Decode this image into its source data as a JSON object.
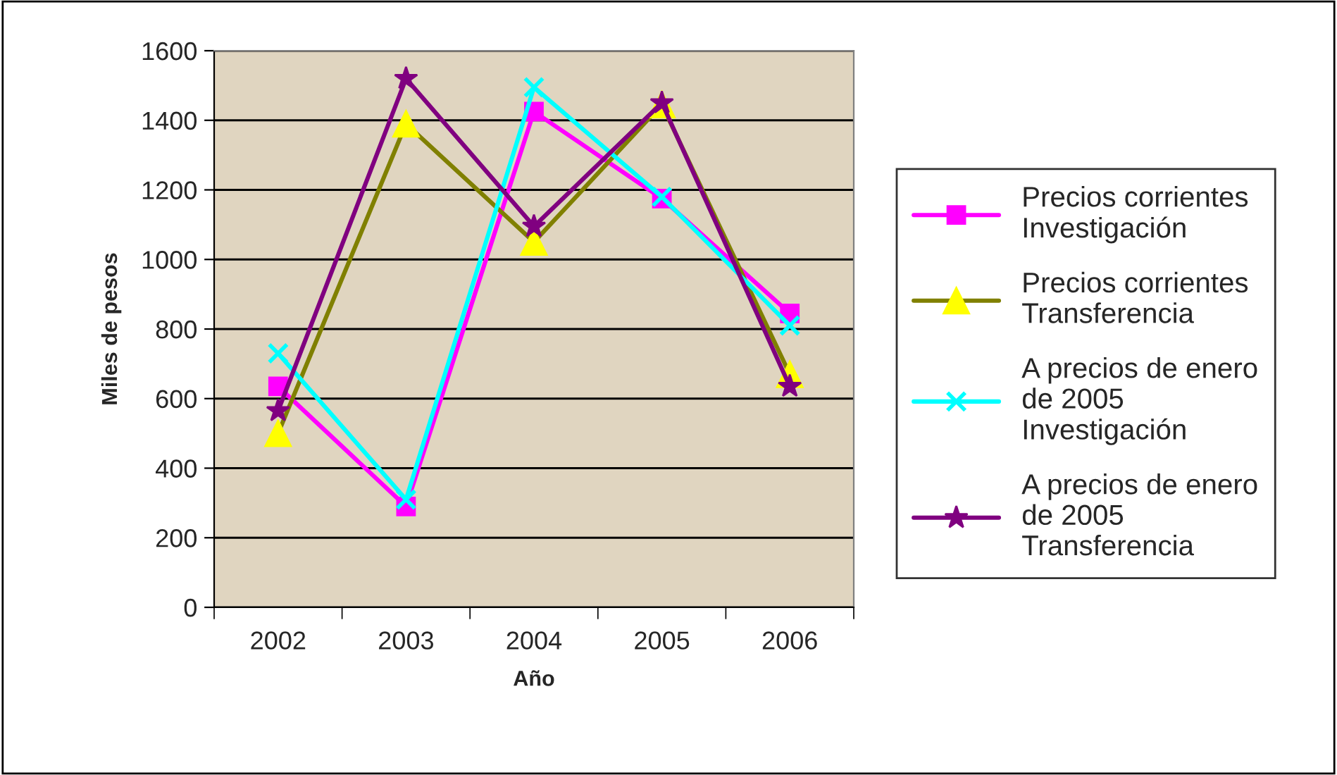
{
  "chart_data": {
    "type": "line",
    "xlabel": "Año",
    "ylabel": "Miles de pesos",
    "categories": [
      "2002",
      "2003",
      "2004",
      "2005",
      "2006"
    ],
    "series": [
      {
        "name": "Precios corrientes Investigación",
        "color": "#ff00ff",
        "marker": "square",
        "values": [
          635,
          290,
          1425,
          1175,
          845
        ]
      },
      {
        "name": "Precios corrientes Transferencia",
        "color": "#808000",
        "marker": "triangle",
        "values": [
          500,
          1390,
          1050,
          1445,
          670
        ]
      },
      {
        "name": "A precios de enero de 2005 Investigación",
        "color": "#00ffff",
        "marker": "cross",
        "values": [
          730,
          310,
          1495,
          1180,
          810
        ]
      },
      {
        "name": "A precios de enero de 2005 Transferencia",
        "color": "#800080",
        "marker": "star",
        "values": [
          565,
          1520,
          1095,
          1450,
          635
        ]
      }
    ],
    "ylim": [
      0,
      1600
    ],
    "yticks": [
      0,
      200,
      400,
      600,
      800,
      1000,
      1200,
      1400,
      1600
    ],
    "grid": "y",
    "legend": "right"
  }
}
